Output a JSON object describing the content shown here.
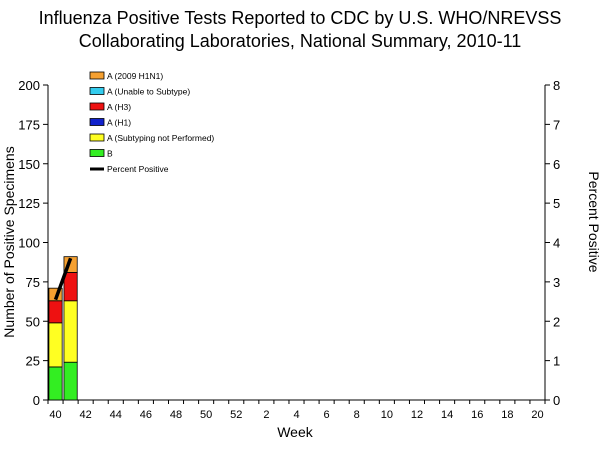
{
  "chart_data": {
    "type": "bar",
    "title_lines": [
      "Influenza Positive Tests Reported to CDC by U.S. WHO/NREVSS",
      "Collaborating Laboratories, National Summary, 2010-11"
    ],
    "xlabel": "Week",
    "ylabel": "Number of Positive Specimens",
    "y2label": "Percent Positive",
    "ylim": [
      0,
      200
    ],
    "yticks": [
      "0",
      "25",
      "50",
      "75",
      "100",
      "125",
      "150",
      "175",
      "200"
    ],
    "y2lim": [
      0,
      8
    ],
    "y2ticks": [
      "0",
      "1",
      "2",
      "3",
      "4",
      "5",
      "6",
      "7",
      "8"
    ],
    "xticks": [
      "40",
      "42",
      "44",
      "46",
      "48",
      "50",
      "52",
      "2",
      "4",
      "6",
      "8",
      "10",
      "12",
      "14",
      "16",
      "18",
      "20"
    ],
    "weeks_total": 33,
    "grid": false,
    "legend_position": "top-left",
    "categories": [
      "40",
      "41"
    ],
    "series": [
      {
        "name": "A (2009 H1N1)",
        "color": "#f5a030",
        "values": [
          8,
          10
        ]
      },
      {
        "name": "A (Unable to Subtype)",
        "color": "#33ccee",
        "values": [
          0,
          0
        ]
      },
      {
        "name": "A (H3)",
        "color": "#ee1111",
        "values": [
          14,
          18
        ]
      },
      {
        "name": "A (H1)",
        "color": "#1122cc",
        "values": [
          0,
          0
        ]
      },
      {
        "name": "A (Subtyping not Performed)",
        "color": "#ffff22",
        "values": [
          28,
          39
        ]
      },
      {
        "name": "B",
        "color": "#33ee22",
        "values": [
          21,
          24
        ]
      }
    ],
    "line_series": {
      "name": "Percent Positive",
      "color": "#000000",
      "values": [
        2.55,
        3.6
      ]
    }
  }
}
